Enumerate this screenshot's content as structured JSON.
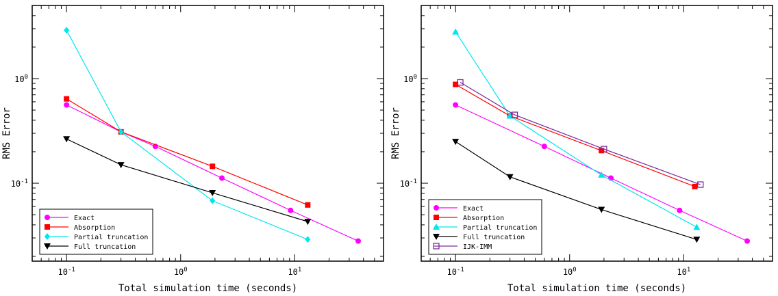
{
  "chart_data": [
    {
      "type": "line",
      "xscale": "log",
      "yscale": "log",
      "xlim": [
        0.05,
        60
      ],
      "ylim": [
        0.018,
        5.0
      ],
      "xlabel": "Total simulation time (seconds)",
      "ylabel": "RMS Error",
      "xticks": [
        {
          "value": 0.1,
          "label": "10^-1"
        },
        {
          "value": 1,
          "label": "10^0"
        },
        {
          "value": 10,
          "label": "10^1"
        }
      ],
      "yticks": [
        {
          "value": 0.1,
          "label": "10^-1"
        },
        {
          "value": 1,
          "label": "10^0"
        }
      ],
      "legend_position": "bottom-left",
      "series": [
        {
          "name": "Exact",
          "color": "#ff00ff",
          "marker": "circle",
          "x": [
            0.1,
            0.3,
            0.6,
            2.3,
            9.2,
            36
          ],
          "y": [
            0.56,
            0.31,
            0.225,
            0.112,
            0.055,
            0.028
          ]
        },
        {
          "name": "Absorption",
          "color": "#ff0000",
          "marker": "square",
          "x": [
            0.1,
            0.3,
            1.9,
            13
          ],
          "y": [
            0.64,
            0.31,
            0.145,
            0.062
          ]
        },
        {
          "name": "Partial truncation",
          "color": "#00e5ee",
          "marker": "diamond",
          "x": [
            0.1,
            0.3,
            1.9,
            13
          ],
          "y": [
            2.9,
            0.31,
            0.068,
            0.029
          ]
        },
        {
          "name": "Full truncation",
          "color": "#000000",
          "marker": "triangle-down",
          "x": [
            0.1,
            0.3,
            1.9,
            13
          ],
          "y": [
            0.265,
            0.15,
            0.081,
            0.043
          ]
        }
      ]
    },
    {
      "type": "line",
      "xscale": "log",
      "yscale": "log",
      "xlim": [
        0.05,
        60
      ],
      "ylim": [
        0.018,
        5.0
      ],
      "xlabel": "Total simulation time (seconds)",
      "ylabel": "RMS Error",
      "xticks": [
        {
          "value": 0.1,
          "label": "10^-1"
        },
        {
          "value": 1,
          "label": "10^0"
        },
        {
          "value": 10,
          "label": "10^1"
        }
      ],
      "yticks": [
        {
          "value": 0.1,
          "label": "10^-1"
        },
        {
          "value": 1,
          "label": "10^0"
        }
      ],
      "legend_position": "bottom-left",
      "series": [
        {
          "name": "Exact",
          "color": "#ff00ff",
          "marker": "circle",
          "x": [
            0.1,
            0.6,
            2.3,
            9.2,
            36
          ],
          "y": [
            0.56,
            0.225,
            0.112,
            0.055,
            0.028
          ]
        },
        {
          "name": "Absorption",
          "color": "#ff0000",
          "marker": "square",
          "x": [
            0.1,
            0.3,
            1.9,
            12.5
          ],
          "y": [
            0.88,
            0.44,
            0.205,
            0.093
          ]
        },
        {
          "name": "Partial truncation",
          "color": "#00e5ee",
          "marker": "triangle-up",
          "x": [
            0.1,
            0.3,
            1.9,
            13
          ],
          "y": [
            2.8,
            0.44,
            0.12,
            0.038
          ]
        },
        {
          "name": "Full truncation",
          "color": "#000000",
          "marker": "triangle-down",
          "x": [
            0.1,
            0.3,
            1.9,
            13
          ],
          "y": [
            0.25,
            0.115,
            0.056,
            0.029
          ]
        },
        {
          "name": "IJK-IMM",
          "color": "#7b2a9c",
          "marker": "open-square",
          "x": [
            0.11,
            0.33,
            2.0,
            14
          ],
          "y": [
            0.92,
            0.45,
            0.212,
            0.097
          ]
        }
      ]
    }
  ]
}
